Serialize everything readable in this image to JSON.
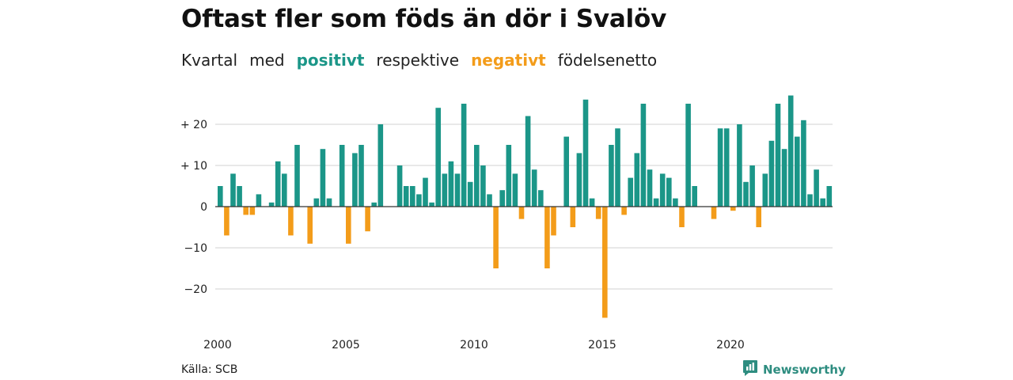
{
  "title": "Oftast fler som föds än dör i Svalöv",
  "subtitle": {
    "part1": "Kvartal",
    "part2": "med",
    "positive_word": "positivt",
    "part3": "respektive",
    "negative_word": "negativt",
    "part4": "födelsenetto"
  },
  "source": "Källa: SCB",
  "brand": {
    "name": "Newsworthy",
    "icon": "newsworthy-logo-icon"
  },
  "colors": {
    "positive": "#1b9688",
    "negative": "#f39c1a",
    "grid": "#d9d9d9",
    "baseline": "#333333"
  },
  "chart_data": {
    "type": "bar",
    "title": "Oftast fler som föds än dör i Svalöv",
    "subtitle": "Kvartal med positivt respektive negativt födelsenetto",
    "xlabel": "",
    "ylabel": "",
    "ylim": [
      -28,
      28
    ],
    "yticks": [
      -20,
      -10,
      0,
      10,
      20
    ],
    "ytick_labels": [
      "−20",
      "−10",
      "0",
      "+ 10",
      "+ 20"
    ],
    "xticks": [
      2000,
      2005,
      2010,
      2015,
      2020
    ],
    "xtick_labels": [
      "2000",
      "2005",
      "2010",
      "2015",
      "2020"
    ],
    "x_start_year": 2000,
    "periods_per_year": 4,
    "grid": true,
    "values": [
      5,
      -7,
      8,
      5,
      -2,
      -2,
      3,
      0,
      1,
      11,
      8,
      -7,
      15,
      0,
      -9,
      2,
      14,
      2,
      0,
      15,
      -9,
      13,
      15,
      -6,
      1,
      20,
      0,
      0,
      10,
      5,
      5,
      3,
      7,
      1,
      24,
      8,
      11,
      8,
      25,
      6,
      15,
      10,
      3,
      -15,
      4,
      15,
      8,
      -3,
      22,
      9,
      4,
      -15,
      -7,
      0,
      17,
      -5,
      13,
      26,
      2,
      -3,
      -27,
      15,
      19,
      -2,
      7,
      13,
      25,
      9,
      2,
      8,
      7,
      2,
      -5,
      25,
      5,
      0,
      0,
      -3,
      19,
      19,
      -1,
      20,
      6,
      10,
      -5,
      8,
      16,
      25,
      14,
      27,
      17,
      21,
      3,
      9,
      2,
      5
    ]
  }
}
